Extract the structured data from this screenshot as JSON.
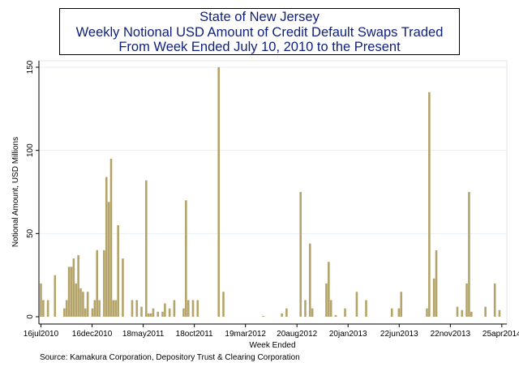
{
  "chart_data": {
    "type": "bar",
    "title": [
      "State of New Jersey",
      "Weekly Notional USD Amount of Credit Default Swaps Traded",
      "From Week Ended July 10, 2010 to the Present"
    ],
    "xlabel": "Week Ended",
    "ylabel": "Notional Amount, USD Millions",
    "ylim": [
      0,
      150
    ],
    "yticks": [
      0,
      50,
      100,
      150
    ],
    "xlim": [
      "2010-07-10",
      "2014-05-10"
    ],
    "xticks": [
      "16jul2010",
      "16dec2010",
      "18may2011",
      "18oct2011",
      "19mar2012",
      "20aug2012",
      "20jan2013",
      "22jun2013",
      "22nov2013",
      "25apr2014"
    ],
    "grid": true,
    "source": "Source: Kamakura Corporation, Depository Trust & Clearing Corporation",
    "bar_color": "#b5a46a",
    "bars": [
      {
        "week": "2010-07-16",
        "value": 20
      },
      {
        "week": "2010-07-23",
        "value": 10
      },
      {
        "week": "2010-08-06",
        "value": 10
      },
      {
        "week": "2010-08-27",
        "value": 25
      },
      {
        "week": "2010-09-24",
        "value": 5
      },
      {
        "week": "2010-10-01",
        "value": 10
      },
      {
        "week": "2010-10-08",
        "value": 30
      },
      {
        "week": "2010-10-15",
        "value": 30
      },
      {
        "week": "2010-10-22",
        "value": 35
      },
      {
        "week": "2010-10-29",
        "value": 20
      },
      {
        "week": "2010-11-05",
        "value": 37
      },
      {
        "week": "2010-11-12",
        "value": 17
      },
      {
        "week": "2010-11-19",
        "value": 15
      },
      {
        "week": "2010-11-26",
        "value": 5
      },
      {
        "week": "2010-12-03",
        "value": 15
      },
      {
        "week": "2010-12-17",
        "value": 5
      },
      {
        "week": "2010-12-24",
        "value": 10
      },
      {
        "week": "2010-12-31",
        "value": 40
      },
      {
        "week": "2011-01-07",
        "value": 10
      },
      {
        "week": "2011-01-21",
        "value": 40
      },
      {
        "week": "2011-01-28",
        "value": 84
      },
      {
        "week": "2011-02-04",
        "value": 69
      },
      {
        "week": "2011-02-11",
        "value": 95
      },
      {
        "week": "2011-02-18",
        "value": 10
      },
      {
        "week": "2011-02-25",
        "value": 10
      },
      {
        "week": "2011-03-04",
        "value": 55
      },
      {
        "week": "2011-03-18",
        "value": 35
      },
      {
        "week": "2011-04-15",
        "value": 10
      },
      {
        "week": "2011-04-29",
        "value": 10
      },
      {
        "week": "2011-05-13",
        "value": 6
      },
      {
        "week": "2011-05-27",
        "value": 82
      },
      {
        "week": "2011-06-03",
        "value": 2
      },
      {
        "week": "2011-06-10",
        "value": 2
      },
      {
        "week": "2011-06-17",
        "value": 5
      },
      {
        "week": "2011-07-01",
        "value": 3
      },
      {
        "week": "2011-07-15",
        "value": 3
      },
      {
        "week": "2011-07-22",
        "value": 8
      },
      {
        "week": "2011-08-05",
        "value": 5
      },
      {
        "week": "2011-08-19",
        "value": 10
      },
      {
        "week": "2011-09-16",
        "value": 5
      },
      {
        "week": "2011-09-23",
        "value": 70
      },
      {
        "week": "2011-09-30",
        "value": 10
      },
      {
        "week": "2011-10-14",
        "value": 10
      },
      {
        "week": "2011-10-28",
        "value": 10
      },
      {
        "week": "2011-12-30",
        "value": 150
      },
      {
        "week": "2012-01-13",
        "value": 15
      },
      {
        "week": "2012-05-11",
        "value": 0.5
      },
      {
        "week": "2012-07-06",
        "value": 2
      },
      {
        "week": "2012-07-20",
        "value": 5
      },
      {
        "week": "2012-08-31",
        "value": 75
      },
      {
        "week": "2012-09-14",
        "value": 10
      },
      {
        "week": "2012-09-28",
        "value": 44
      },
      {
        "week": "2012-10-05",
        "value": 5
      },
      {
        "week": "2012-11-16",
        "value": 20
      },
      {
        "week": "2012-11-23",
        "value": 33
      },
      {
        "week": "2012-11-30",
        "value": 10
      },
      {
        "week": "2012-12-14",
        "value": 1
      },
      {
        "week": "2013-01-11",
        "value": 5
      },
      {
        "week": "2013-02-15",
        "value": 15
      },
      {
        "week": "2013-03-15",
        "value": 10
      },
      {
        "week": "2013-05-31",
        "value": 5
      },
      {
        "week": "2013-06-21",
        "value": 5
      },
      {
        "week": "2013-06-28",
        "value": 15
      },
      {
        "week": "2013-09-13",
        "value": 5
      },
      {
        "week": "2013-09-20",
        "value": 135
      },
      {
        "week": "2013-10-04",
        "value": 23
      },
      {
        "week": "2013-10-11",
        "value": 40
      },
      {
        "week": "2013-12-13",
        "value": 6
      },
      {
        "week": "2013-12-27",
        "value": 4
      },
      {
        "week": "2014-01-10",
        "value": 20
      },
      {
        "week": "2014-01-17",
        "value": 75
      },
      {
        "week": "2014-01-24",
        "value": 3
      },
      {
        "week": "2014-03-07",
        "value": 6
      },
      {
        "week": "2014-04-04",
        "value": 20
      },
      {
        "week": "2014-04-18",
        "value": 4
      }
    ]
  }
}
